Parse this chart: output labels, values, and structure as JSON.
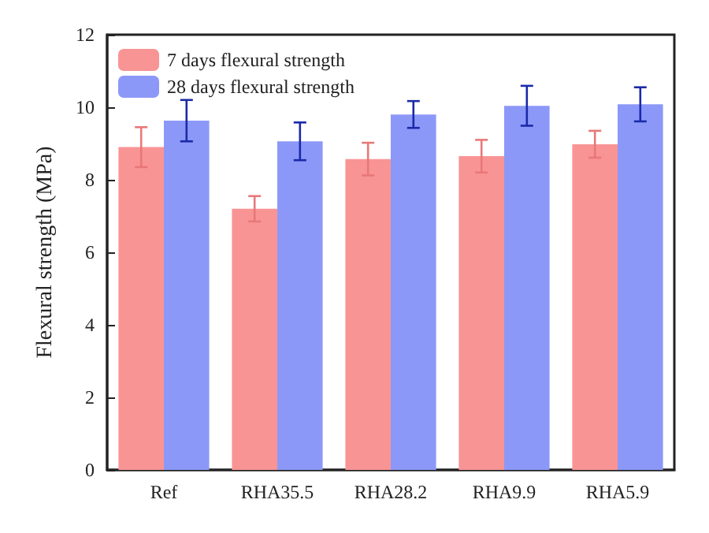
{
  "chart_data": {
    "type": "bar",
    "ylabel": "Flexural strength (MPa)",
    "categories": [
      "Ref",
      "RHA35.5",
      "RHA28.2",
      "RHA9.9",
      "RHA5.9"
    ],
    "series": [
      {
        "name": "7 days flexural strength",
        "color": "#f99494",
        "values": [
          8.9,
          7.2,
          8.57,
          8.65,
          8.98
        ],
        "errors": [
          0.55,
          0.35,
          0.45,
          0.45,
          0.37
        ]
      },
      {
        "name": "28 days flexural strength",
        "color": "#8c98f8",
        "values": [
          9.63,
          9.06,
          9.8,
          10.04,
          10.08
        ],
        "errors": [
          0.57,
          0.52,
          0.37,
          0.55,
          0.47
        ]
      }
    ],
    "ylim": [
      0,
      12
    ],
    "yticks": [
      0,
      2,
      4,
      6,
      8,
      10,
      12
    ],
    "grid": false,
    "legend": "top left"
  }
}
